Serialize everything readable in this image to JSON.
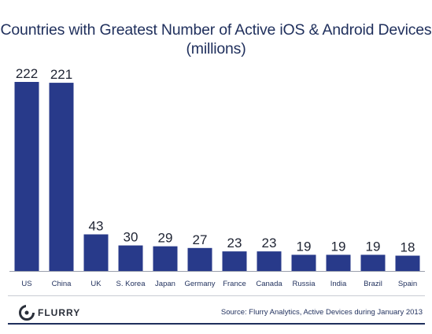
{
  "chart_data": {
    "type": "bar",
    "title": "Countries with Greatest Number of Active iOS & Android Devices",
    "subtitle": "(millions)",
    "categories": [
      "US",
      "China",
      "UK",
      "S. Korea",
      "Japan",
      "Germany",
      "France",
      "Canada",
      "Russia",
      "India",
      "Brazil",
      "Spain"
    ],
    "values": [
      222,
      221,
      43,
      30,
      29,
      27,
      23,
      23,
      19,
      19,
      19,
      18
    ],
    "value_labels": [
      "222",
      "221",
      "43",
      "30",
      "29",
      "27",
      "23",
      "23",
      "19",
      "19",
      "19",
      "18"
    ],
    "ylim": [
      0,
      222
    ],
    "grid": false,
    "bar_color": "#283a8a"
  },
  "footer": {
    "logo_text": "FLURRY",
    "source": "Source: Flurry Analytics, Active Devices during January 2013"
  },
  "colors": {
    "title": "#1f2f5c",
    "axis": "#9aa0ad"
  }
}
